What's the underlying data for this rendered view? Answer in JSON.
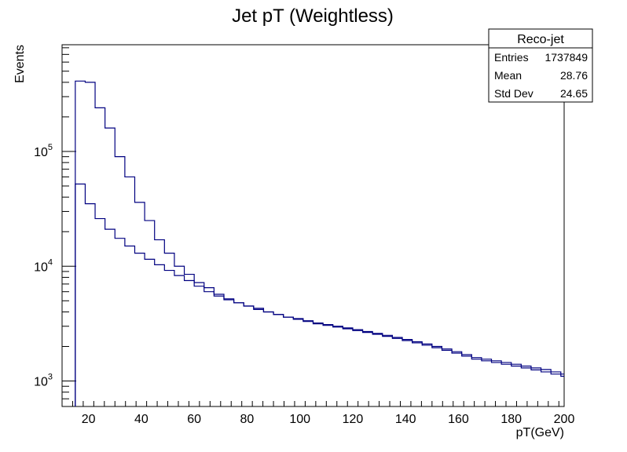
{
  "chart_data": {
    "type": "line",
    "title": "Jet pT (Weightless)",
    "xlabel": "pT(GeV)",
    "ylabel": "Events",
    "xlim": [
      10,
      200
    ],
    "ylim": [
      600,
      850000
    ],
    "yscale": "log",
    "grid": false,
    "x_ticks": [
      20,
      40,
      60,
      80,
      100,
      120,
      140,
      160,
      180,
      200
    ],
    "y_ticks": [
      {
        "value": 1000,
        "base": "10",
        "exp": "3"
      },
      {
        "value": 10000,
        "base": "10",
        "exp": "4"
      },
      {
        "value": 100000,
        "base": "10",
        "exp": "5"
      }
    ],
    "bin_width": 3.75,
    "bin_start": 15,
    "series": [
      {
        "color": "#000080",
        "values": [
          410000,
          400000,
          240000,
          160000,
          90000,
          60000,
          36000,
          25000,
          17000,
          13000,
          10000,
          8500,
          7200,
          6500,
          5700,
          5200,
          4800,
          4500,
          4300,
          4000,
          3800,
          3600,
          3500,
          3350,
          3200,
          3100,
          3000,
          2900,
          2800,
          2700,
          2600,
          2500,
          2400,
          2300,
          2200,
          2100,
          2000,
          1900,
          1800,
          1700,
          1600,
          1550,
          1500,
          1450,
          1400,
          1350,
          1300,
          1260,
          1200,
          1150
        ]
      },
      {
        "color": "#000080",
        "values": [
          52000,
          35000,
          26000,
          21000,
          17500,
          15000,
          13000,
          11500,
          10300,
          9200,
          8300,
          7500,
          6700,
          6000,
          5500,
          5100,
          4800,
          4500,
          4200,
          4000,
          3800,
          3600,
          3450,
          3300,
          3150,
          3050,
          2950,
          2850,
          2750,
          2650,
          2550,
          2450,
          2350,
          2250,
          2150,
          2050,
          1950,
          1850,
          1750,
          1650,
          1550,
          1500,
          1450,
          1400,
          1350,
          1300,
          1250,
          1200,
          1150,
          1100
        ]
      }
    ]
  },
  "stats": {
    "name": "Reco-jet",
    "rows": [
      {
        "label": "Entries",
        "value": "1737849"
      },
      {
        "label": "Mean",
        "value": "28.76"
      },
      {
        "label": "Std Dev",
        "value": "24.65"
      }
    ]
  }
}
